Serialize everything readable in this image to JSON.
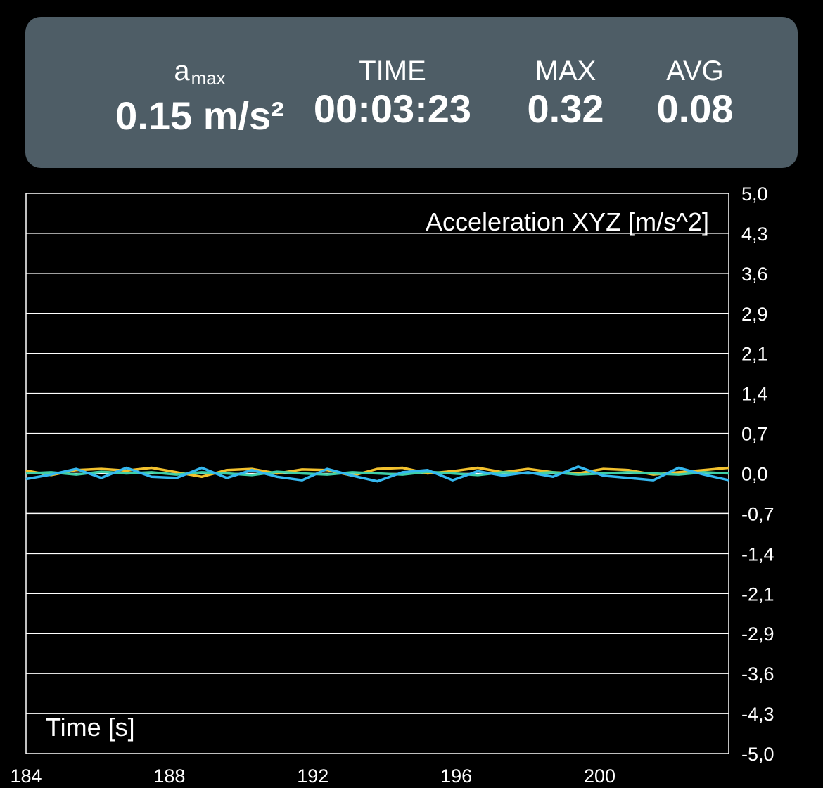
{
  "stats": {
    "amax": {
      "label_main": "a",
      "label_sub": "max",
      "value": "0.15 m/s²"
    },
    "time": {
      "label": "TIME",
      "value": "00:03:23"
    },
    "max": {
      "label": "MAX",
      "value": "0.32"
    },
    "avg": {
      "label": "AVG",
      "value": "0.08"
    }
  },
  "colors": {
    "panel": "#4e5d66",
    "series_x": "#f2c12e",
    "series_y": "#3fd0a8",
    "series_z": "#35b8f0",
    "grid": "#ffffff"
  },
  "chart_data": {
    "type": "line",
    "title": "Acceleration XYZ [m/s^2]",
    "xlabel": "Time [s]",
    "ylabel": "",
    "xlim": [
      184,
      203.6
    ],
    "ylim": [
      -5.0,
      5.0
    ],
    "xticks": [
      "184",
      "188",
      "192",
      "196",
      "200"
    ],
    "yticks": [
      "5,0",
      "4,3",
      "3,6",
      "2,9",
      "2,1",
      "1,4",
      "0,7",
      "0,0",
      "-0,7",
      "-1,4",
      "-2,1",
      "-2,9",
      "-3,6",
      "-4,3",
      "-5,0"
    ],
    "grid": true,
    "series": [
      {
        "x": [
          184.0,
          184.7,
          185.4,
          186.1,
          186.8,
          187.5,
          188.2,
          188.9,
          189.6,
          190.3,
          191.0,
          191.7,
          192.4,
          193.1,
          193.8,
          194.5,
          195.2,
          195.9,
          196.6,
          197.3,
          198.0,
          198.7,
          199.4,
          200.1,
          200.8,
          201.5,
          202.2,
          202.9,
          203.6
        ],
        "values": [
          0.05,
          -0.03,
          0.06,
          0.08,
          0.05,
          0.1,
          0.02,
          -0.06,
          0.06,
          0.08,
          0.0,
          0.07,
          0.06,
          -0.04,
          0.08,
          0.1,
          0.0,
          0.04,
          0.1,
          0.02,
          0.08,
          0.02,
          0.0,
          0.08,
          0.06,
          -0.02,
          0.02,
          0.06,
          0.1
        ]
      },
      {
        "x": [
          184.0,
          184.7,
          185.4,
          186.1,
          186.8,
          187.5,
          188.2,
          188.9,
          189.6,
          190.3,
          191.0,
          191.7,
          192.4,
          193.1,
          193.8,
          194.5,
          195.2,
          195.9,
          196.6,
          197.3,
          198.0,
          198.7,
          199.4,
          200.1,
          200.8,
          201.5,
          202.2,
          202.9,
          203.6
        ],
        "values": [
          0.0,
          0.02,
          -0.02,
          0.03,
          0.0,
          0.02,
          -0.02,
          0.02,
          0.0,
          -0.03,
          0.03,
          0.0,
          -0.02,
          0.02,
          0.0,
          -0.02,
          0.03,
          0.0,
          -0.03,
          0.02,
          0.0,
          0.02,
          -0.02,
          0.0,
          0.02,
          0.0,
          -0.02,
          0.02,
          0.0
        ]
      },
      {
        "x": [
          184.0,
          184.7,
          185.4,
          186.1,
          186.8,
          187.5,
          188.2,
          188.9,
          189.6,
          190.3,
          191.0,
          191.7,
          192.4,
          193.1,
          193.8,
          194.5,
          195.2,
          195.9,
          196.6,
          197.3,
          198.0,
          198.7,
          199.4,
          200.1,
          200.8,
          201.5,
          202.2,
          202.9,
          203.6
        ],
        "values": [
          -0.1,
          -0.02,
          0.08,
          -0.08,
          0.1,
          -0.06,
          -0.08,
          0.1,
          -0.08,
          0.06,
          -0.06,
          -0.12,
          0.08,
          -0.04,
          -0.14,
          0.02,
          0.06,
          -0.12,
          0.04,
          -0.04,
          0.02,
          -0.06,
          0.12,
          -0.04,
          -0.08,
          -0.12,
          0.1,
          -0.02,
          -0.12
        ]
      }
    ]
  }
}
